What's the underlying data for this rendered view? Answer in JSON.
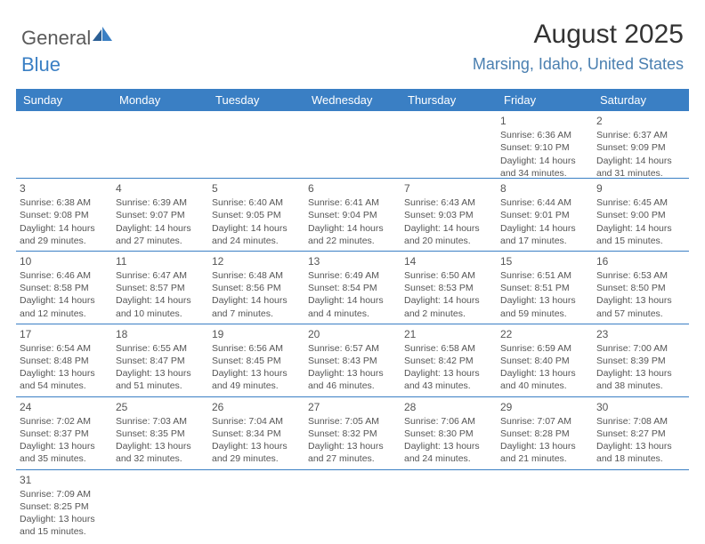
{
  "logo": {
    "text1": "General",
    "text2": "Blue"
  },
  "header": {
    "title": "August 2025",
    "location": "Marsing, Idaho, United States"
  },
  "calendar": {
    "colors": {
      "header_bg": "#3a7fc4",
      "header_fg": "#ffffff",
      "row_border": "#3a7fc4",
      "text": "#555555",
      "location": "#4a7fb0"
    },
    "day_labels": [
      "Sunday",
      "Monday",
      "Tuesday",
      "Wednesday",
      "Thursday",
      "Friday",
      "Saturday"
    ],
    "weeks": [
      [
        null,
        null,
        null,
        null,
        null,
        {
          "n": "1",
          "sunrise": "Sunrise: 6:36 AM",
          "sunset": "Sunset: 9:10 PM",
          "day1": "Daylight: 14 hours",
          "day2": "and 34 minutes."
        },
        {
          "n": "2",
          "sunrise": "Sunrise: 6:37 AM",
          "sunset": "Sunset: 9:09 PM",
          "day1": "Daylight: 14 hours",
          "day2": "and 31 minutes."
        }
      ],
      [
        {
          "n": "3",
          "sunrise": "Sunrise: 6:38 AM",
          "sunset": "Sunset: 9:08 PM",
          "day1": "Daylight: 14 hours",
          "day2": "and 29 minutes."
        },
        {
          "n": "4",
          "sunrise": "Sunrise: 6:39 AM",
          "sunset": "Sunset: 9:07 PM",
          "day1": "Daylight: 14 hours",
          "day2": "and 27 minutes."
        },
        {
          "n": "5",
          "sunrise": "Sunrise: 6:40 AM",
          "sunset": "Sunset: 9:05 PM",
          "day1": "Daylight: 14 hours",
          "day2": "and 24 minutes."
        },
        {
          "n": "6",
          "sunrise": "Sunrise: 6:41 AM",
          "sunset": "Sunset: 9:04 PM",
          "day1": "Daylight: 14 hours",
          "day2": "and 22 minutes."
        },
        {
          "n": "7",
          "sunrise": "Sunrise: 6:43 AM",
          "sunset": "Sunset: 9:03 PM",
          "day1": "Daylight: 14 hours",
          "day2": "and 20 minutes."
        },
        {
          "n": "8",
          "sunrise": "Sunrise: 6:44 AM",
          "sunset": "Sunset: 9:01 PM",
          "day1": "Daylight: 14 hours",
          "day2": "and 17 minutes."
        },
        {
          "n": "9",
          "sunrise": "Sunrise: 6:45 AM",
          "sunset": "Sunset: 9:00 PM",
          "day1": "Daylight: 14 hours",
          "day2": "and 15 minutes."
        }
      ],
      [
        {
          "n": "10",
          "sunrise": "Sunrise: 6:46 AM",
          "sunset": "Sunset: 8:58 PM",
          "day1": "Daylight: 14 hours",
          "day2": "and 12 minutes."
        },
        {
          "n": "11",
          "sunrise": "Sunrise: 6:47 AM",
          "sunset": "Sunset: 8:57 PM",
          "day1": "Daylight: 14 hours",
          "day2": "and 10 minutes."
        },
        {
          "n": "12",
          "sunrise": "Sunrise: 6:48 AM",
          "sunset": "Sunset: 8:56 PM",
          "day1": "Daylight: 14 hours",
          "day2": "and 7 minutes."
        },
        {
          "n": "13",
          "sunrise": "Sunrise: 6:49 AM",
          "sunset": "Sunset: 8:54 PM",
          "day1": "Daylight: 14 hours",
          "day2": "and 4 minutes."
        },
        {
          "n": "14",
          "sunrise": "Sunrise: 6:50 AM",
          "sunset": "Sunset: 8:53 PM",
          "day1": "Daylight: 14 hours",
          "day2": "and 2 minutes."
        },
        {
          "n": "15",
          "sunrise": "Sunrise: 6:51 AM",
          "sunset": "Sunset: 8:51 PM",
          "day1": "Daylight: 13 hours",
          "day2": "and 59 minutes."
        },
        {
          "n": "16",
          "sunrise": "Sunrise: 6:53 AM",
          "sunset": "Sunset: 8:50 PM",
          "day1": "Daylight: 13 hours",
          "day2": "and 57 minutes."
        }
      ],
      [
        {
          "n": "17",
          "sunrise": "Sunrise: 6:54 AM",
          "sunset": "Sunset: 8:48 PM",
          "day1": "Daylight: 13 hours",
          "day2": "and 54 minutes."
        },
        {
          "n": "18",
          "sunrise": "Sunrise: 6:55 AM",
          "sunset": "Sunset: 8:47 PM",
          "day1": "Daylight: 13 hours",
          "day2": "and 51 minutes."
        },
        {
          "n": "19",
          "sunrise": "Sunrise: 6:56 AM",
          "sunset": "Sunset: 8:45 PM",
          "day1": "Daylight: 13 hours",
          "day2": "and 49 minutes."
        },
        {
          "n": "20",
          "sunrise": "Sunrise: 6:57 AM",
          "sunset": "Sunset: 8:43 PM",
          "day1": "Daylight: 13 hours",
          "day2": "and 46 minutes."
        },
        {
          "n": "21",
          "sunrise": "Sunrise: 6:58 AM",
          "sunset": "Sunset: 8:42 PM",
          "day1": "Daylight: 13 hours",
          "day2": "and 43 minutes."
        },
        {
          "n": "22",
          "sunrise": "Sunrise: 6:59 AM",
          "sunset": "Sunset: 8:40 PM",
          "day1": "Daylight: 13 hours",
          "day2": "and 40 minutes."
        },
        {
          "n": "23",
          "sunrise": "Sunrise: 7:00 AM",
          "sunset": "Sunset: 8:39 PM",
          "day1": "Daylight: 13 hours",
          "day2": "and 38 minutes."
        }
      ],
      [
        {
          "n": "24",
          "sunrise": "Sunrise: 7:02 AM",
          "sunset": "Sunset: 8:37 PM",
          "day1": "Daylight: 13 hours",
          "day2": "and 35 minutes."
        },
        {
          "n": "25",
          "sunrise": "Sunrise: 7:03 AM",
          "sunset": "Sunset: 8:35 PM",
          "day1": "Daylight: 13 hours",
          "day2": "and 32 minutes."
        },
        {
          "n": "26",
          "sunrise": "Sunrise: 7:04 AM",
          "sunset": "Sunset: 8:34 PM",
          "day1": "Daylight: 13 hours",
          "day2": "and 29 minutes."
        },
        {
          "n": "27",
          "sunrise": "Sunrise: 7:05 AM",
          "sunset": "Sunset: 8:32 PM",
          "day1": "Daylight: 13 hours",
          "day2": "and 27 minutes."
        },
        {
          "n": "28",
          "sunrise": "Sunrise: 7:06 AM",
          "sunset": "Sunset: 8:30 PM",
          "day1": "Daylight: 13 hours",
          "day2": "and 24 minutes."
        },
        {
          "n": "29",
          "sunrise": "Sunrise: 7:07 AM",
          "sunset": "Sunset: 8:28 PM",
          "day1": "Daylight: 13 hours",
          "day2": "and 21 minutes."
        },
        {
          "n": "30",
          "sunrise": "Sunrise: 7:08 AM",
          "sunset": "Sunset: 8:27 PM",
          "day1": "Daylight: 13 hours",
          "day2": "and 18 minutes."
        }
      ],
      [
        {
          "n": "31",
          "sunrise": "Sunrise: 7:09 AM",
          "sunset": "Sunset: 8:25 PM",
          "day1": "Daylight: 13 hours",
          "day2": "and 15 minutes."
        },
        null,
        null,
        null,
        null,
        null,
        null
      ]
    ]
  }
}
